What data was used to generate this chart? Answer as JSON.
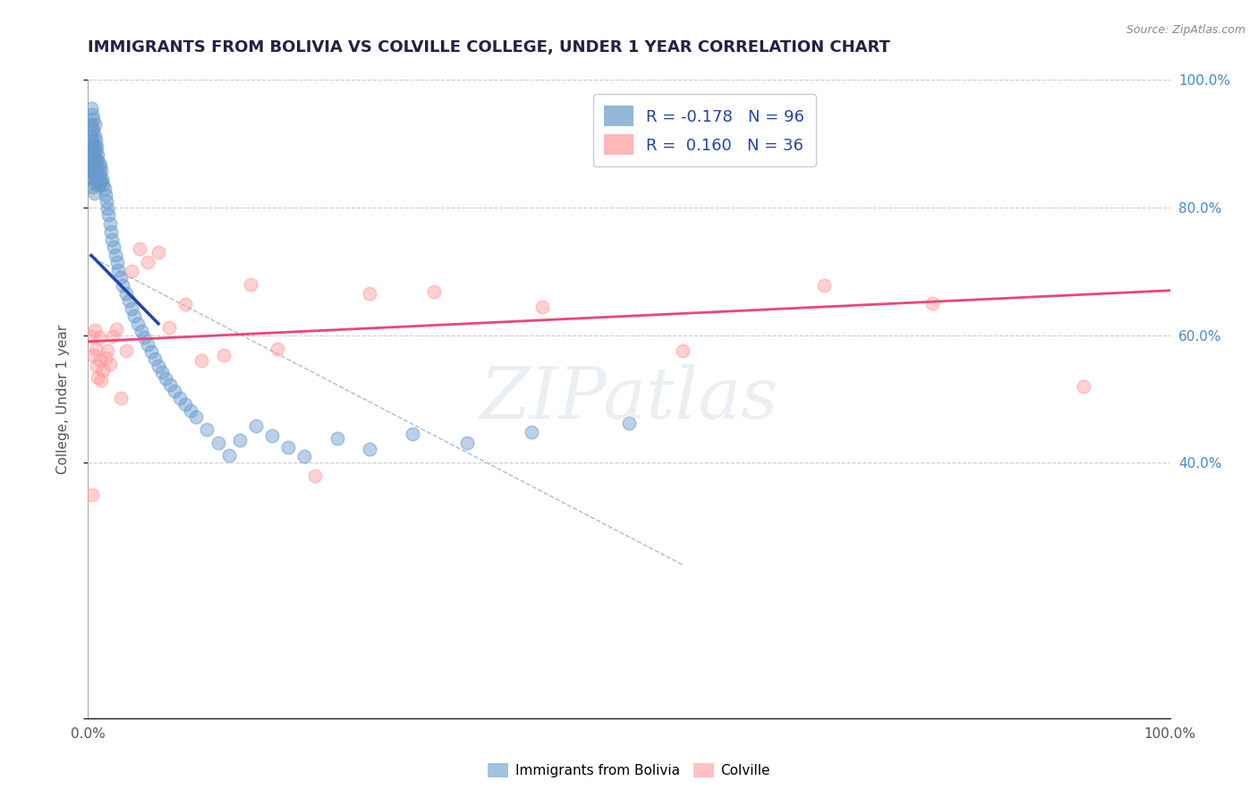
{
  "title": "IMMIGRANTS FROM BOLIVIA VS COLVILLE COLLEGE, UNDER 1 YEAR CORRELATION CHART",
  "source": "Source: ZipAtlas.com",
  "ylabel": "College, Under 1 year",
  "xlim": [
    0.0,
    1.0
  ],
  "ylim": [
    0.0,
    1.0
  ],
  "ytick_positions": [
    0.0,
    0.4,
    0.6,
    0.8,
    1.0
  ],
  "ytick_labels_right": [
    "",
    "40.0%",
    "60.0%",
    "80.0%",
    "100.0%"
  ],
  "xtick_positions": [
    0.0,
    1.0
  ],
  "xtick_labels": [
    "0.0%",
    "100.0%"
  ],
  "grid_color": "#cccccc",
  "background_color": "#ffffff",
  "bolivia_color": "#6699cc",
  "colville_color": "#ff9999",
  "bolivia_line_color": "#2244aa",
  "colville_line_color": "#ee4477",
  "dashed_line_color": "#aabbdd",
  "R_bolivia": -0.178,
  "N_bolivia": 96,
  "R_colville": 0.16,
  "N_colville": 36,
  "bolivia_line_x": [
    0.003,
    0.065
  ],
  "bolivia_line_y": [
    0.725,
    0.618
  ],
  "colville_line_x": [
    0.0,
    1.0
  ],
  "colville_line_y": [
    0.59,
    0.67
  ],
  "dashed_line_x": [
    0.0,
    0.55
  ],
  "dashed_line_y": [
    0.725,
    0.24
  ],
  "bolivia_scatter_x": [
    0.003,
    0.003,
    0.003,
    0.003,
    0.003,
    0.003,
    0.003,
    0.004,
    0.004,
    0.004,
    0.004,
    0.004,
    0.004,
    0.004,
    0.005,
    0.005,
    0.005,
    0.005,
    0.005,
    0.005,
    0.005,
    0.005,
    0.006,
    0.006,
    0.006,
    0.006,
    0.006,
    0.006,
    0.006,
    0.006,
    0.007,
    0.007,
    0.007,
    0.007,
    0.007,
    0.008,
    0.008,
    0.008,
    0.009,
    0.009,
    0.01,
    0.01,
    0.01,
    0.011,
    0.011,
    0.012,
    0.012,
    0.013,
    0.014,
    0.015,
    0.016,
    0.017,
    0.018,
    0.019,
    0.02,
    0.021,
    0.022,
    0.024,
    0.025,
    0.027,
    0.028,
    0.03,
    0.032,
    0.035,
    0.038,
    0.04,
    0.043,
    0.046,
    0.049,
    0.052,
    0.055,
    0.058,
    0.062,
    0.065,
    0.068,
    0.072,
    0.076,
    0.08,
    0.085,
    0.09,
    0.095,
    0.1,
    0.11,
    0.12,
    0.13,
    0.14,
    0.155,
    0.17,
    0.185,
    0.2,
    0.23,
    0.26,
    0.3,
    0.35,
    0.41,
    0.5
  ],
  "bolivia_scatter_y": [
    0.955,
    0.93,
    0.91,
    0.895,
    0.88,
    0.87,
    0.858,
    0.945,
    0.925,
    0.905,
    0.888,
    0.872,
    0.862,
    0.848,
    0.938,
    0.92,
    0.9,
    0.885,
    0.87,
    0.857,
    0.845,
    0.832,
    0.93,
    0.912,
    0.895,
    0.878,
    0.865,
    0.85,
    0.836,
    0.822,
    0.905,
    0.888,
    0.87,
    0.855,
    0.84,
    0.895,
    0.875,
    0.858,
    0.882,
    0.862,
    0.87,
    0.853,
    0.836,
    0.865,
    0.845,
    0.858,
    0.84,
    0.845,
    0.836,
    0.83,
    0.82,
    0.81,
    0.798,
    0.788,
    0.775,
    0.762,
    0.75,
    0.738,
    0.726,
    0.714,
    0.702,
    0.69,
    0.678,
    0.666,
    0.654,
    0.642,
    0.63,
    0.618,
    0.607,
    0.596,
    0.585,
    0.574,
    0.563,
    0.552,
    0.542,
    0.532,
    0.522,
    0.512,
    0.502,
    0.492,
    0.482,
    0.472,
    0.452,
    0.432,
    0.412,
    0.435,
    0.458,
    0.442,
    0.425,
    0.41,
    0.438,
    0.422,
    0.445,
    0.432,
    0.448,
    0.462
  ],
  "colville_scatter_x": [
    0.003,
    0.004,
    0.005,
    0.006,
    0.007,
    0.008,
    0.009,
    0.01,
    0.011,
    0.012,
    0.014,
    0.016,
    0.018,
    0.02,
    0.023,
    0.026,
    0.03,
    0.035,
    0.04,
    0.048,
    0.055,
    0.065,
    0.075,
    0.09,
    0.105,
    0.125,
    0.15,
    0.175,
    0.21,
    0.26,
    0.32,
    0.42,
    0.55,
    0.68,
    0.78,
    0.92
  ],
  "colville_scatter_y": [
    0.598,
    0.35,
    0.568,
    0.608,
    0.578,
    0.552,
    0.534,
    0.596,
    0.56,
    0.53,
    0.545,
    0.565,
    0.575,
    0.555,
    0.598,
    0.61,
    0.502,
    0.575,
    0.7,
    0.735,
    0.715,
    0.73,
    0.612,
    0.648,
    0.56,
    0.568,
    0.68,
    0.578,
    0.38,
    0.665,
    0.668,
    0.645,
    0.575,
    0.678,
    0.65,
    0.52
  ],
  "legend_labels": [
    "Immigrants from Bolivia",
    "Colville"
  ],
  "watermark_text": "ZIPatlas",
  "title_fontsize": 13,
  "label_fontsize": 11,
  "tick_fontsize": 11,
  "source_fontsize": 9,
  "legend_fontsize": 13
}
